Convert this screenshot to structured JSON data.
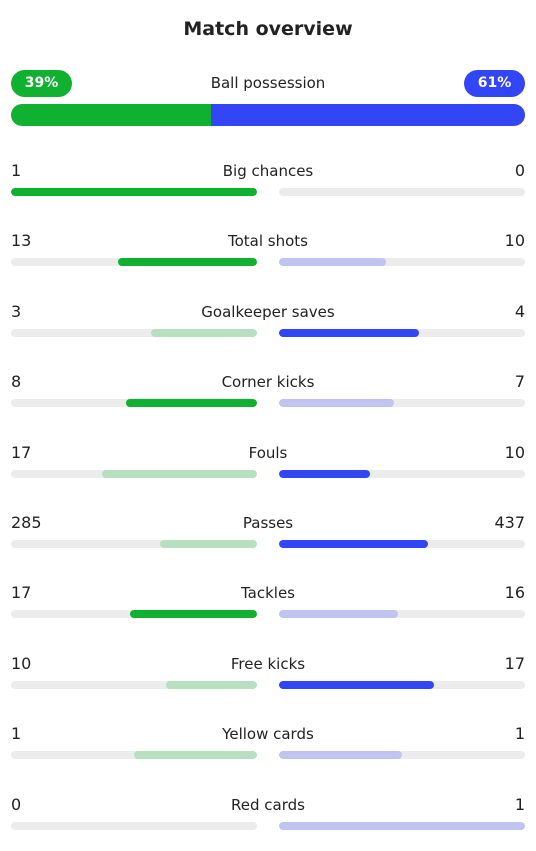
{
  "title": "Match overview",
  "colors": {
    "home_strong": "#10b030",
    "home_light": "#b6e0c0",
    "away_strong": "#3346f5",
    "away_light": "#bfc4f1",
    "track": "#ececec"
  },
  "possession": {
    "label": "Ball possession",
    "home": "39%",
    "away": "61%",
    "home_fraction": 0.39,
    "away_fraction": 0.61
  },
  "stats": [
    {
      "label": "Big chances",
      "home": "1",
      "away": "0",
      "home_fill": 1.0,
      "away_fill": 0.0,
      "winner": "home"
    },
    {
      "label": "Total shots",
      "home": "13",
      "away": "10",
      "home_fill": 0.565,
      "away_fill": 0.435,
      "winner": "home"
    },
    {
      "label": "Goalkeeper saves",
      "home": "3",
      "away": "4",
      "home_fill": 0.429,
      "away_fill": 0.571,
      "winner": "away"
    },
    {
      "label": "Corner kicks",
      "home": "8",
      "away": "7",
      "home_fill": 0.533,
      "away_fill": 0.467,
      "winner": "home"
    },
    {
      "label": "Fouls",
      "home": "17",
      "away": "10",
      "home_fill": 0.63,
      "away_fill": 0.37,
      "winner": "away"
    },
    {
      "label": "Passes",
      "home": "285",
      "away": "437",
      "home_fill": 0.395,
      "away_fill": 0.605,
      "winner": "away"
    },
    {
      "label": "Tackles",
      "home": "17",
      "away": "16",
      "home_fill": 0.515,
      "away_fill": 0.485,
      "winner": "home"
    },
    {
      "label": "Free kicks",
      "home": "10",
      "away": "17",
      "home_fill": 0.37,
      "away_fill": 0.63,
      "winner": "away"
    },
    {
      "label": "Yellow cards",
      "home": "1",
      "away": "1",
      "home_fill": 0.5,
      "away_fill": 0.5,
      "winner": "none"
    },
    {
      "label": "Red cards",
      "home": "0",
      "away": "1",
      "home_fill": 0.0,
      "away_fill": 1.0,
      "winner": "none"
    }
  ]
}
